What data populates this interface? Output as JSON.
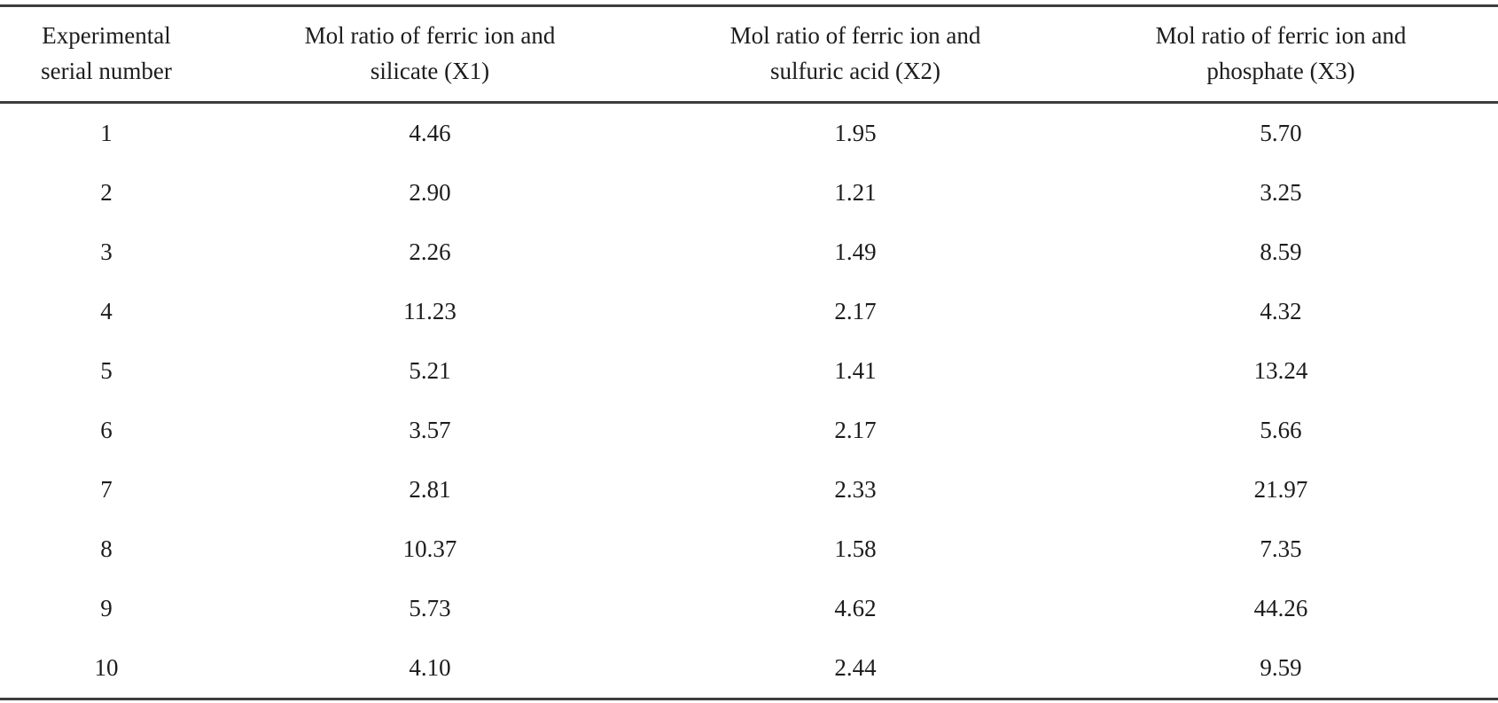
{
  "table": {
    "columns": [
      {
        "line1": "Experimental",
        "line2": "serial number"
      },
      {
        "line1": "Mol ratio of ferric ion and",
        "line2": "silicate (X1)"
      },
      {
        "line1": "Mol ratio of ferric ion and",
        "line2": "sulfuric acid (X2)"
      },
      {
        "line1": "Mol ratio of ferric ion and",
        "line2": "phosphate (X3)"
      }
    ],
    "rows": [
      {
        "serial": "1",
        "x1": "4.46",
        "x2": "1.95",
        "x3": "5.70"
      },
      {
        "serial": "2",
        "x1": "2.90",
        "x2": "1.21",
        "x3": "3.25"
      },
      {
        "serial": "3",
        "x1": "2.26",
        "x2": "1.49",
        "x3": "8.59"
      },
      {
        "serial": "4",
        "x1": "11.23",
        "x2": "2.17",
        "x3": "4.32"
      },
      {
        "serial": "5",
        "x1": "5.21",
        "x2": "1.41",
        "x3": "13.24"
      },
      {
        "serial": "6",
        "x1": "3.57",
        "x2": "2.17",
        "x3": "5.66"
      },
      {
        "serial": "7",
        "x1": "2.81",
        "x2": "2.33",
        "x3": "21.97"
      },
      {
        "serial": "8",
        "x1": "10.37",
        "x2": "1.58",
        "x3": "7.35"
      },
      {
        "serial": "9",
        "x1": "5.73",
        "x2": "4.62",
        "x3": "44.26"
      },
      {
        "serial": "10",
        "x1": "4.10",
        "x2": "2.44",
        "x3": "9.59"
      }
    ],
    "rule_color": "#3d3d3d",
    "text_color": "#1c1c1c",
    "background_color": "#ffffff"
  },
  "chart_data": {
    "type": "table",
    "title": "",
    "columns": [
      "Experimental serial number",
      "Mol ratio of ferric ion and silicate (X1)",
      "Mol ratio of ferric ion and sulfuric acid (X2)",
      "Mol ratio of ferric ion and phosphate (X3)"
    ],
    "rows": [
      [
        1,
        4.46,
        1.95,
        5.7
      ],
      [
        2,
        2.9,
        1.21,
        3.25
      ],
      [
        3,
        2.26,
        1.49,
        8.59
      ],
      [
        4,
        11.23,
        2.17,
        4.32
      ],
      [
        5,
        5.21,
        1.41,
        13.24
      ],
      [
        6,
        3.57,
        2.17,
        5.66
      ],
      [
        7,
        2.81,
        2.33,
        21.97
      ],
      [
        8,
        10.37,
        1.58,
        7.35
      ],
      [
        9,
        5.73,
        4.62,
        44.26
      ],
      [
        10,
        4.1,
        2.44,
        9.59
      ]
    ]
  }
}
